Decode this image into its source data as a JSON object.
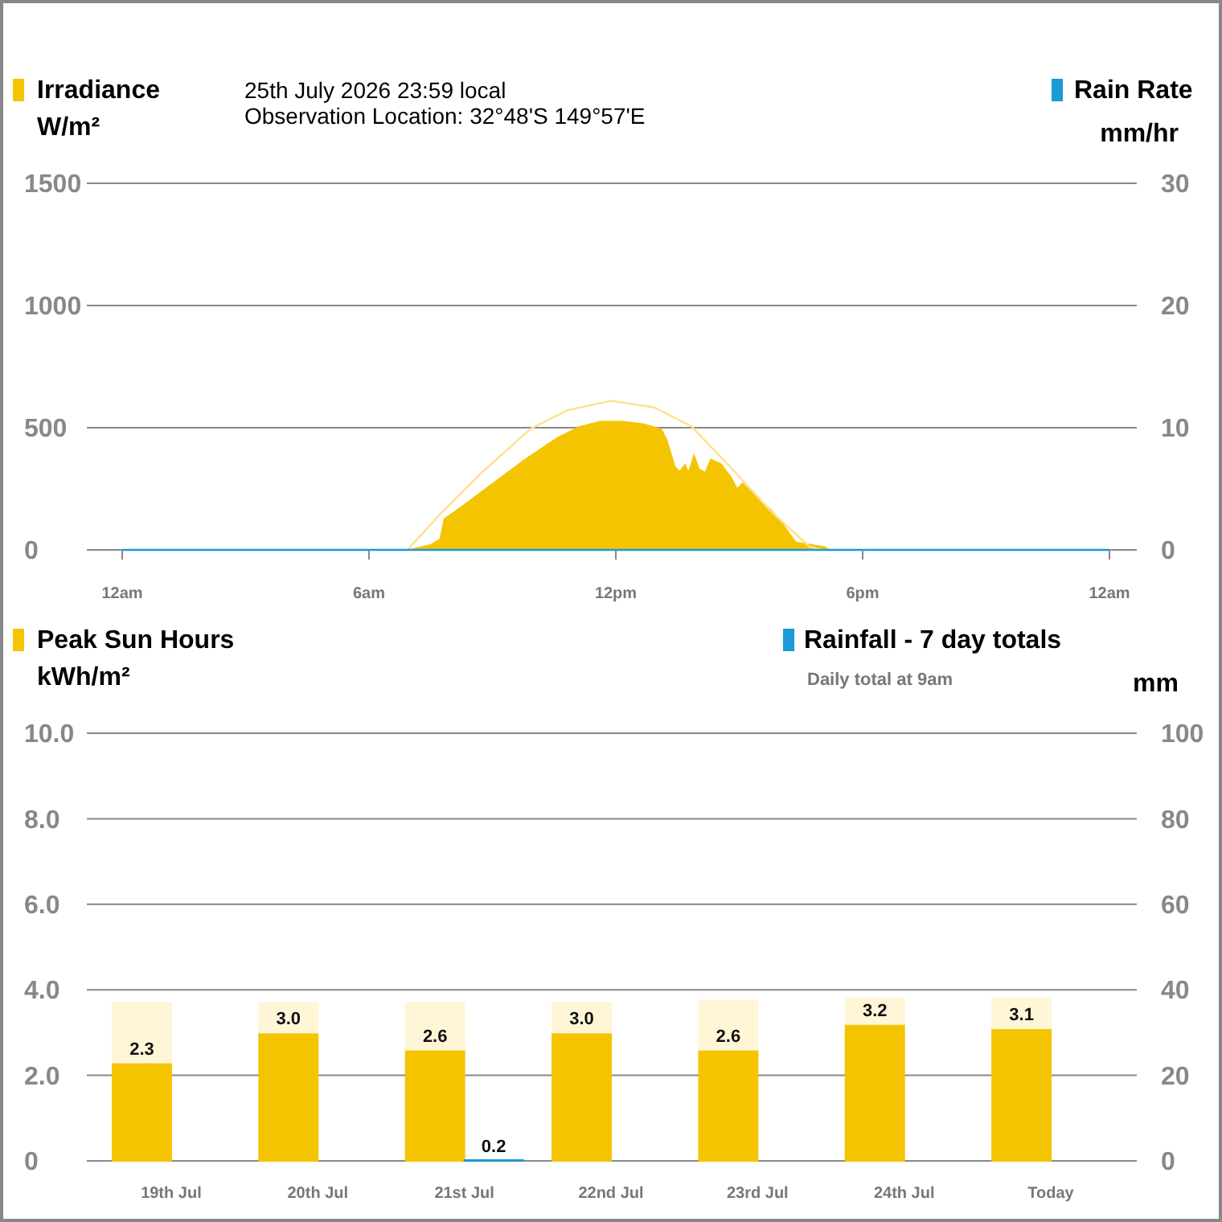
{
  "chart_data": [
    {
      "type": "area",
      "subtitle": "25th July 2026  23:59 local",
      "annotations": [
        "Observation Location: 32°48'S 149°57'E"
      ],
      "ylabel": "W/m²",
      "y2label": "mm/hr",
      "xlim": [
        "2026-07-25T00:00",
        "2026-07-26T00:00"
      ],
      "xticks": [
        {
          "value": "2026-07-25T00:00",
          "label": "12am"
        },
        {
          "value": "2026-07-25T06:00",
          "label": "6am"
        },
        {
          "value": "2026-07-25T12:00",
          "label": "12pm"
        },
        {
          "value": "2026-07-25T18:00",
          "label": "6pm"
        },
        {
          "value": "2026-07-26T00:00",
          "label": "12am"
        }
      ],
      "ylim": [
        0,
        1500
      ],
      "yticks": [
        0,
        500,
        1000,
        1500
      ],
      "y2lim": [
        0,
        30
      ],
      "y2ticks": [
        0,
        10,
        20,
        30
      ],
      "grid": "y",
      "legend": "top",
      "series": [
        {
          "name": "Irradiance",
          "color": "#f5c400",
          "x": [
            "2026-07-25T06:54",
            "2026-07-25T07:30",
            "2026-07-25T07:43",
            "2026-07-25T07:49",
            "2026-07-25T08:14",
            "2026-07-25T09:01",
            "2026-07-25T09:48",
            "2026-07-25T10:35",
            "2026-07-25T11:06",
            "2026-07-25T11:37",
            "2026-07-25T12:09",
            "2026-07-25T12:40",
            "2026-07-25T13:07",
            "2026-07-25T13:15",
            "2026-07-25T13:27",
            "2026-07-25T13:33",
            "2026-07-25T13:41",
            "2026-07-25T13:46",
            "2026-07-25T13:54",
            "2026-07-25T14:02",
            "2026-07-25T14:10",
            "2026-07-25T14:18",
            "2026-07-25T14:34",
            "2026-07-25T14:49",
            "2026-07-25T14:57",
            "2026-07-25T15:05",
            "2026-07-25T15:32",
            "2026-07-25T15:47",
            "2026-07-25T16:03",
            "2026-07-25T16:23",
            "2026-07-25T17:06",
            "2026-07-25T17:12"
          ],
          "values": [
            0,
            24,
            46,
            128,
            178,
            276,
            374,
            462,
            506,
            528,
            528,
            518,
            496,
            452,
            342,
            324,
            354,
            324,
            396,
            332,
            320,
            374,
            354,
            298,
            254,
            276,
            200,
            166,
            112,
            34,
            14,
            0
          ]
        },
        {
          "type": "line",
          "color": "#ffe08a",
          "x": [
            "2026-07-25T06:56",
            "2026-07-25T07:43",
            "2026-07-25T08:46",
            "2026-07-25T09:56",
            "2026-07-25T10:50",
            "2026-07-25T11:53",
            "2026-07-25T12:55",
            "2026-07-25T13:50",
            "2026-07-25T14:46",
            "2026-07-25T15:47",
            "2026-07-25T16:42",
            "2026-07-25T17:00"
          ],
          "values": [
            0,
            144,
            320,
            496,
            572,
            610,
            584,
            506,
            342,
            156,
            14,
            0
          ]
        },
        {
          "name": "Rain Rate",
          "type": "line",
          "axis": "y2",
          "color": "#1a9ad6",
          "x": [
            "2026-07-25T00:00",
            "2026-07-26T00:00"
          ],
          "values": [
            0,
            0
          ]
        }
      ]
    },
    {
      "type": "bar",
      "stacked": true,
      "annotations": [
        "Daily total at 9am"
      ],
      "ylabel": "kWh/m²",
      "y2label": "mm",
      "categories": [
        "19th Jul",
        "20th Jul",
        "21st Jul",
        "22nd Jul",
        "23rd Jul",
        "24th Jul",
        "Today"
      ],
      "ylim": [
        0,
        10
      ],
      "yticks": [
        {
          "value": 0,
          "label": "0"
        },
        {
          "value": 2,
          "label": "2.0"
        },
        {
          "value": 4,
          "label": "4.0"
        },
        {
          "value": 6,
          "label": "6.0"
        },
        {
          "value": 8,
          "label": "8.0"
        },
        {
          "value": 10,
          "label": "10.0"
        }
      ],
      "y2lim": [
        0,
        100
      ],
      "y2ticks": [
        0,
        20,
        40,
        60,
        80,
        100
      ],
      "grid": "y",
      "legend": "top",
      "series": [
        {
          "name": "Peak Sun Hours",
          "color": "#f5c400",
          "values": [
            2.3,
            3.0,
            2.6,
            3.0,
            2.6,
            3.2,
            3.1
          ],
          "value_labels": [
            "2.3",
            "3.0",
            "2.6",
            "3.0",
            "2.6",
            "3.2",
            "3.1"
          ]
        },
        {
          "color": "#fff6d8",
          "values": [
            1.4,
            0.7,
            1.1,
            0.7,
            1.15,
            0.6,
            0.7
          ]
        },
        {
          "name": "Rainfall - 7 day totals",
          "axis": "y2",
          "color": "#1a9ad6",
          "values": [
            0,
            0,
            0.2,
            0,
            0,
            0,
            0
          ],
          "value_labels": [
            null,
            null,
            "0.2",
            null,
            null,
            null,
            null
          ]
        }
      ]
    }
  ]
}
